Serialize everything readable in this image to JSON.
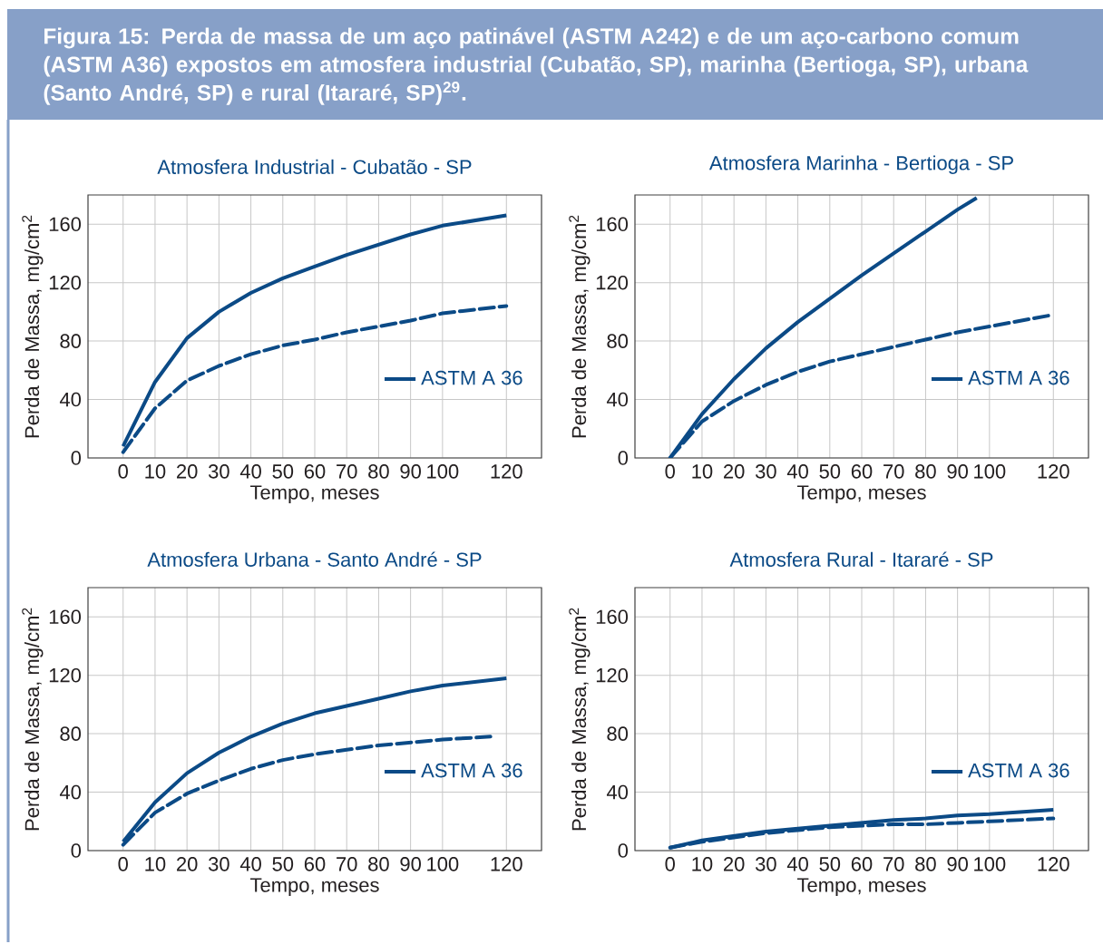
{
  "chart_data": [
    {
      "type": "line",
      "title": "Atmosfera Industrial - Cubatão - SP",
      "xlabel": "Tempo, meses",
      "ylabel": "Perda de Massa, mg/cm$^{2}$",
      "annotations": [
        "Figura 15: Perda de massa de um aço patinável (ASTM A242) e de um aço-carbono comum (ASTM A36) expostos em atmosfera industrial (Cubatão, SP), marinha (Bertioga, SP), urbana (Santo André, SP) e rural (Itararé, SP)$^{29}$."
      ],
      "xlim": [
        -11,
        131
      ],
      "ylim": [
        0,
        180
      ],
      "xticks": [
        0,
        10,
        20,
        30,
        40,
        50,
        60,
        70,
        80,
        90,
        100,
        120
      ],
      "yticks": [
        0,
        40,
        80,
        120,
        160
      ],
      "grid": true,
      "legend": "bottom right",
      "marker": "none",
      "series": [
        {
          "name": "ASTM A 36",
          "color": "#0b4a86",
          "line_style": "solid",
          "x": [
            0,
            5,
            10,
            20,
            30,
            40,
            50,
            60,
            70,
            80,
            90,
            100,
            120
          ],
          "values": [
            8,
            30,
            52,
            82,
            100,
            113,
            123,
            131,
            139,
            146,
            153,
            159,
            166
          ]
        },
        {
          "color": "#0b4a86",
          "line_style": "dashed",
          "x": [
            0,
            10,
            20,
            30,
            40,
            50,
            60,
            70,
            80,
            90,
            100,
            120
          ],
          "values": [
            4,
            34,
            53,
            63,
            71,
            77,
            81,
            86,
            90,
            94,
            99,
            104
          ]
        }
      ]
    },
    {
      "type": "line",
      "title": "Atmosfera Marinha - Bertioga - SP",
      "xlabel": "Tempo, meses",
      "ylabel": "Perda de Massa, mg/cm$^{2}$",
      "xlim": [
        -11,
        131
      ],
      "ylim": [
        0,
        180
      ],
      "xticks": [
        0,
        10,
        20,
        30,
        40,
        50,
        60,
        70,
        80,
        90,
        100,
        120
      ],
      "yticks": [
        0,
        40,
        80,
        120,
        160
      ],
      "grid": true,
      "legend": "bottom right",
      "marker": "none",
      "series": [
        {
          "name": "ASTM A 36",
          "color": "#0b4a86",
          "line_style": "solid",
          "x": [
            0,
            10,
            20,
            30,
            40,
            50,
            60,
            70,
            80,
            90,
            96
          ],
          "values": [
            0,
            30,
            54,
            75,
            93,
            109,
            125,
            140,
            155,
            170,
            178
          ]
        },
        {
          "color": "#0b4a86",
          "line_style": "dashed",
          "x": [
            0,
            10,
            20,
            30,
            40,
            50,
            60,
            70,
            80,
            90,
            100,
            120
          ],
          "values": [
            0,
            25,
            39,
            50,
            59,
            66,
            71,
            76,
            81,
            86,
            90,
            98
          ]
        }
      ]
    },
    {
      "type": "line",
      "title": "Atmosfera Urbana - Santo André - SP",
      "xlabel": "Tempo, meses",
      "ylabel": "Perda de Massa, mg/cm$^{2}$",
      "xlim": [
        -11,
        131
      ],
      "ylim": [
        0,
        180
      ],
      "xticks": [
        0,
        10,
        20,
        30,
        40,
        50,
        60,
        70,
        80,
        90,
        100,
        120
      ],
      "yticks": [
        0,
        40,
        80,
        120,
        160
      ],
      "grid": true,
      "legend": "bottom right",
      "marker": "none",
      "series": [
        {
          "name": "ASTM A 36",
          "color": "#0b4a86",
          "line_style": "solid",
          "x": [
            0,
            10,
            20,
            30,
            40,
            50,
            60,
            70,
            80,
            90,
            100,
            120
          ],
          "values": [
            6,
            33,
            53,
            67,
            78,
            87,
            94,
            99,
            104,
            109,
            113,
            118
          ]
        },
        {
          "color": "#0b4a86",
          "line_style": "dashed",
          "x": [
            0,
            10,
            20,
            30,
            40,
            50,
            60,
            70,
            80,
            90,
            100,
            115
          ],
          "values": [
            4,
            26,
            39,
            48,
            56,
            62,
            66,
            69,
            72,
            74,
            76,
            78
          ]
        }
      ]
    },
    {
      "type": "line",
      "title": "Atmosfera Rural - Itararé - SP",
      "xlabel": "Tempo, meses",
      "ylabel": "Perda de Massa, mg/cm$^{2}$",
      "xlim": [
        -11,
        131
      ],
      "ylim": [
        0,
        180
      ],
      "xticks": [
        0,
        10,
        20,
        30,
        40,
        50,
        60,
        70,
        80,
        90,
        100,
        120
      ],
      "yticks": [
        0,
        40,
        80,
        120,
        160
      ],
      "grid": true,
      "legend": "bottom right",
      "marker": "none",
      "series": [
        {
          "name": "ASTM A 36",
          "color": "#0b4a86",
          "line_style": "solid",
          "x": [
            0,
            10,
            20,
            30,
            40,
            50,
            60,
            70,
            80,
            90,
            100,
            120
          ],
          "values": [
            2,
            7,
            10,
            13,
            15,
            17,
            19,
            21,
            22,
            24,
            25,
            28
          ]
        },
        {
          "color": "#0b4a86",
          "line_style": "dashed",
          "x": [
            0,
            10,
            20,
            30,
            40,
            50,
            60,
            70,
            80,
            90,
            100,
            120
          ],
          "values": [
            2,
            6,
            9,
            12,
            14,
            16,
            17,
            18,
            18,
            19,
            20,
            22
          ]
        }
      ]
    }
  ]
}
